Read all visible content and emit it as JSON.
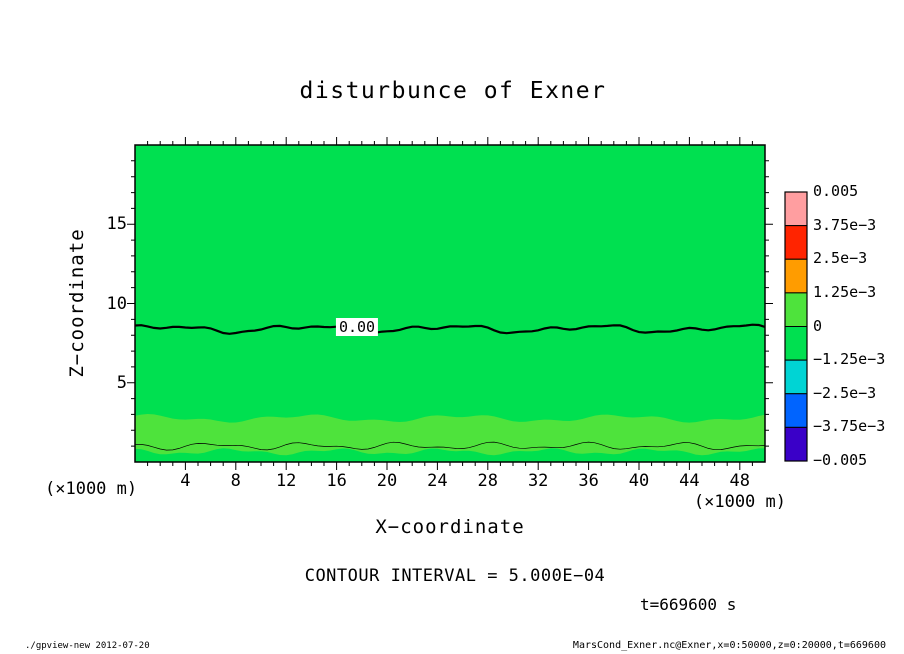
{
  "title": "disturbunce of Exner",
  "plot": {
    "zero_contour_label": "0.00",
    "contour_interval_text": "CONTOUR INTERVAL = 5.000E−04",
    "time_text": "t=669600 s"
  },
  "axes": {
    "x": {
      "label": "X−coordinate",
      "unit": "(×1000 m)",
      "ticks": [
        "4",
        "8",
        "12",
        "16",
        "20",
        "24",
        "28",
        "32",
        "36",
        "40",
        "44",
        "48"
      ]
    },
    "y": {
      "label": "Z−coordinate",
      "unit": "(×1000 m)",
      "ticks": [
        "5",
        "10",
        "15"
      ]
    }
  },
  "colorbar": {
    "labels": [
      "0.005",
      "3.75e−3",
      "2.5e−3",
      "1.25e−3",
      "0",
      "−1.25e−3",
      "−2.5e−3",
      "−3.75e−3",
      "−0.005"
    ],
    "colors": [
      "#ff9ea0",
      "#ff2400",
      "#ff9c00",
      "#4ee33c",
      "#00e050",
      "#00d4d4",
      "#0064ff",
      "#3a00c8"
    ]
  },
  "footer": {
    "left": "./gpview-new  2012-07-20",
    "right": "MarsCond_Exner.nc@Exner,x=0:50000,z=0:20000,t=669600"
  },
  "chart_data": {
    "type": "heatmap",
    "subtype": "filled-contour",
    "title": "disturbunce of Exner",
    "xlabel": "X-coordinate (×1000 m)",
    "ylabel": "Z-coordinate (×1000 m)",
    "xlim": [
      0,
      50
    ],
    "ylim": [
      0,
      20
    ],
    "x_ticks": [
      4,
      8,
      12,
      16,
      20,
      24,
      28,
      32,
      36,
      40,
      44,
      48
    ],
    "y_ticks": [
      5,
      10,
      15
    ],
    "grid": false,
    "legend_position": "right-colorbar",
    "contour_interval": 0.0005,
    "levels": [
      -0.005,
      -0.00375,
      -0.0025,
      -0.00125,
      0,
      0.00125,
      0.0025,
      0.00375,
      0.005
    ],
    "level_colors_top_to_bottom": [
      "#ff9ea0",
      "#ff2400",
      "#ff9c00",
      "#4ee33c",
      "#00e050",
      "#00d4d4",
      "#0064ff",
      "#3a00c8"
    ],
    "field_fill": "#00e050",
    "band_fill": "#4ee33c",
    "features": [
      {
        "name": "zero-contour",
        "kind": "bold-contour",
        "value": 0,
        "label": "0.00",
        "z_mean": 8.4,
        "z_wiggle_amplitude": 0.25
      },
      {
        "name": "surface-band",
        "kind": "filled-band",
        "value_range": [
          0,
          0.00125
        ],
        "z_top_mean": 2.75,
        "z_bottom_mean": 0.65
      },
      {
        "name": "surface-thin-contour",
        "kind": "thin-contour",
        "z_mean": 1.0
      }
    ],
    "background_value_range": [
      -0.00125,
      0.00125
    ],
    "time": "t=669600 s"
  }
}
